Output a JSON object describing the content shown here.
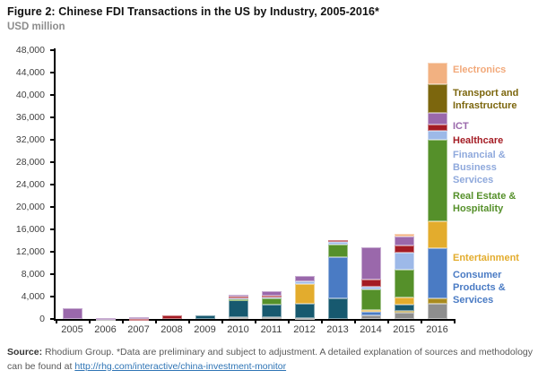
{
  "title": "Figure 2: Chinese FDI Transactions in the US by Industry, 2005-2016*",
  "subtitle": "USD million",
  "chart_data": {
    "type": "bar",
    "stacked": true,
    "title": "Figure 2: Chinese FDI Transactions in the US by Industry, 2005-2016*",
    "ylabel": "USD million",
    "xlabel": "",
    "grid": false,
    "ylim": [
      0,
      48000
    ],
    "ytick_step": 4000,
    "axis_color": "#000000",
    "categories": [
      "2005",
      "2006",
      "2007",
      "2008",
      "2009",
      "2010",
      "2011",
      "2012",
      "2013",
      "2014",
      "2015",
      "2016"
    ],
    "series": [
      {
        "name": "Other industries (unlabeled, gray)",
        "key": "other-gray",
        "color": "#8e8e8e",
        "values": [
          0,
          50,
          0,
          0,
          0,
          250,
          300,
          200,
          0,
          650,
          1150,
          2700
        ]
      },
      {
        "name": "Other industries (unlabeled, gold)",
        "key": "other-gold",
        "color": "#a98b1f",
        "values": [
          0,
          0,
          0,
          0,
          0,
          0,
          0,
          0,
          0,
          0,
          300,
          1000
        ]
      },
      {
        "name": "Energy (unlabeled, teal)",
        "key": "energy",
        "color": "#17596f",
        "values": [
          0,
          0,
          0,
          0,
          700,
          3100,
          2300,
          2600,
          3700,
          0,
          1150,
          0
        ]
      },
      {
        "name": "Consumer Products & Services",
        "key": "consumer",
        "color": "#4a7bc4",
        "values": [
          0,
          0,
          0,
          0,
          0,
          0,
          0,
          0,
          7400,
          650,
          0,
          9000
        ]
      },
      {
        "name": "Entertainment",
        "key": "entertainment",
        "color": "#e3ac2d",
        "values": [
          0,
          0,
          0,
          0,
          0,
          0,
          0,
          3500,
          0,
          350,
          1300,
          4800
        ]
      },
      {
        "name": "Real Estate & Hospitality",
        "key": "realestate",
        "color": "#55902a",
        "values": [
          0,
          0,
          0,
          0,
          0,
          250,
          1150,
          0,
          2250,
          3700,
          4900,
          14500
        ]
      },
      {
        "name": "Financial & Business Services",
        "key": "financial",
        "color": "#9db9e8",
        "values": [
          0,
          0,
          0,
          0,
          0,
          200,
          250,
          450,
          350,
          480,
          3100,
          1600
        ]
      },
      {
        "name": "Healthcare",
        "key": "healthcare",
        "color": "#a41c24",
        "values": [
          0,
          0,
          60,
          600,
          0,
          150,
          200,
          0,
          450,
          1250,
          1150,
          1100
        ]
      },
      {
        "name": "ICT",
        "key": "ict",
        "color": "#9a68ab",
        "values": [
          1950,
          100,
          250,
          0,
          0,
          450,
          800,
          900,
          0,
          5800,
          1600,
          2100
        ]
      },
      {
        "name": "Transport and Infrastructure",
        "key": "transport",
        "color": "#7c660d",
        "values": [
          0,
          0,
          0,
          0,
          0,
          0,
          0,
          0,
          0,
          0,
          0,
          5100
        ]
      },
      {
        "name": "Electronics",
        "key": "electronics",
        "color": "#f2b181",
        "values": [
          0,
          0,
          0,
          0,
          0,
          0,
          0,
          0,
          0,
          0,
          480,
          3800
        ]
      }
    ],
    "legend_position": "right of 2016 bar",
    "legend": [
      {
        "label": "Electronics",
        "color": "#f2a97a",
        "top": 71
      },
      {
        "label": "Transport and\nInfrastructure",
        "color": "#7c660d",
        "top": 97
      },
      {
        "label": "ICT",
        "color": "#9a68ab",
        "top": 134
      },
      {
        "label": "Healthcare",
        "color": "#a41c24",
        "top": 150
      },
      {
        "label": "Financial &\nBusiness Services",
        "color": "#8fa9dc",
        "top": 166
      },
      {
        "label": "Real Estate &\nHospitality",
        "color": "#55902a",
        "top": 212
      },
      {
        "label": "Entertainment",
        "color": "#e3ac2d",
        "top": 281
      },
      {
        "label": "Consumer\nProducts &\nServices",
        "color": "#4a7bc4",
        "top": 300
      }
    ]
  },
  "footer": {
    "source_label": "Source:",
    "text_before_link": " Rhodium Group. *Data are preliminary and subject to adjustment. A detailed explanation of sources and methodology can be found at ",
    "link_text": "http://rhg.com/interactive/china-investment-monitor"
  }
}
